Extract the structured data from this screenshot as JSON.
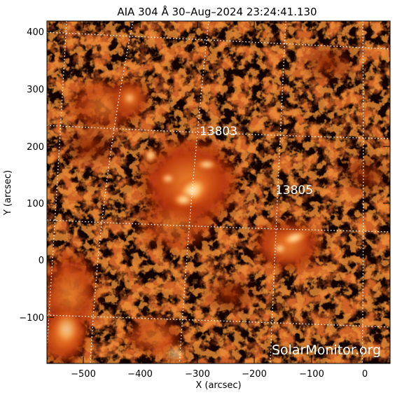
{
  "title": "AIA 304 Å 30–Aug–2024 23:24:41.130",
  "xlabel": "X (arcsec)",
  "ylabel": "Y (arcsec)",
  "x_ticks": [
    "−500",
    "−400",
    "−300",
    "−200",
    "−100",
    "0"
  ],
  "y_ticks": [
    "400",
    "300",
    "200",
    "100",
    "0",
    "−100"
  ],
  "active_regions": [
    "13803",
    "13805"
  ],
  "watermark": "SolarMonitor.org",
  "colors": {
    "background": "#000000",
    "plasma_mid": "#c23a08",
    "plasma_bright": "#ffd48a",
    "grid": "#ffffff"
  }
}
